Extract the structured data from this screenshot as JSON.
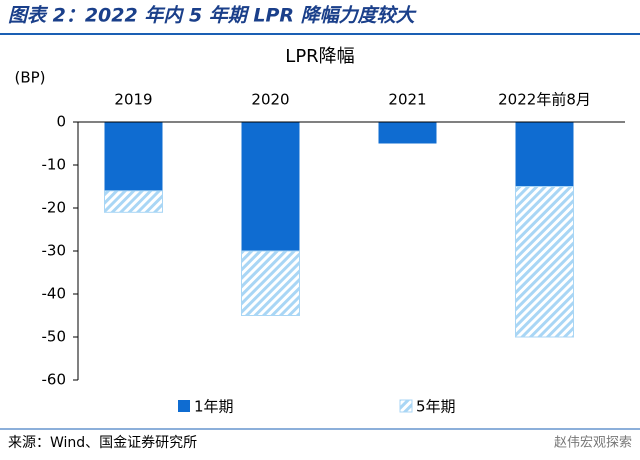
{
  "header": {
    "title": "图表 2：2022 年内 5 年期 LPR 降幅力度较大"
  },
  "chart_data": {
    "type": "bar",
    "stacked": true,
    "title": "LPR降幅",
    "y_label": "(BP)",
    "categories": [
      "2019",
      "2020",
      "2021",
      "2022年前8月"
    ],
    "series": [
      {
        "name": "1年期",
        "color": "#0f6cd1",
        "values": [
          -16,
          -30,
          -5,
          -15
        ]
      },
      {
        "name": "5年期",
        "color": "#a9d6f5",
        "hatch": true,
        "values": [
          -5,
          -15,
          0,
          -35
        ]
      }
    ],
    "ylim": [
      -60,
      0
    ],
    "yticks": [
      0,
      -10,
      -20,
      -30,
      -40,
      -50,
      -60
    ],
    "legend": "bottom"
  },
  "footer": {
    "source": "来源：Wind、国金证券研究所",
    "watermark": "赵伟宏观探索"
  }
}
